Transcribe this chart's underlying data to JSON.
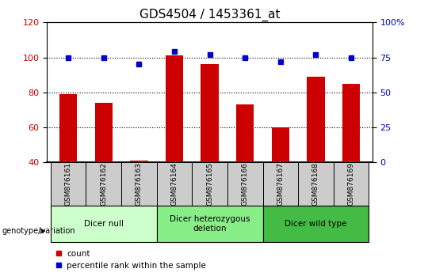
{
  "title": "GDS4504 / 1453361_at",
  "samples": [
    "GSM876161",
    "GSM876162",
    "GSM876163",
    "GSM876164",
    "GSM876165",
    "GSM876166",
    "GSM876167",
    "GSM876168",
    "GSM876169"
  ],
  "counts": [
    79,
    74,
    41,
    101,
    96,
    73,
    60,
    89,
    85
  ],
  "percentile_ranks": [
    75,
    75,
    70,
    79,
    77,
    75,
    72,
    77,
    75
  ],
  "ylim_left": [
    40,
    120
  ],
  "ylim_right": [
    0,
    100
  ],
  "yticks_left": [
    40,
    60,
    80,
    100,
    120
  ],
  "yticks_right": [
    0,
    25,
    50,
    75,
    100
  ],
  "bar_color": "#cc0000",
  "dot_color": "#0000cc",
  "groups": [
    {
      "label": "Dicer null",
      "start": 0,
      "end": 3,
      "color": "#ccffcc"
    },
    {
      "label": "Dicer heterozygous\ndeletion",
      "start": 3,
      "end": 6,
      "color": "#88ee88"
    },
    {
      "label": "Dicer wild type",
      "start": 6,
      "end": 9,
      "color": "#44bb44"
    }
  ],
  "legend_count_label": "count",
  "legend_pct_label": "percentile rank within the sample",
  "xlabel_group": "genotype/variation",
  "grid_color": "black",
  "tick_label_color_left": "#cc0000",
  "tick_label_color_right": "#0000cc",
  "title_fontsize": 11,
  "axis_fontsize": 8,
  "sample_box_color": "#cccccc",
  "bar_width": 0.5
}
